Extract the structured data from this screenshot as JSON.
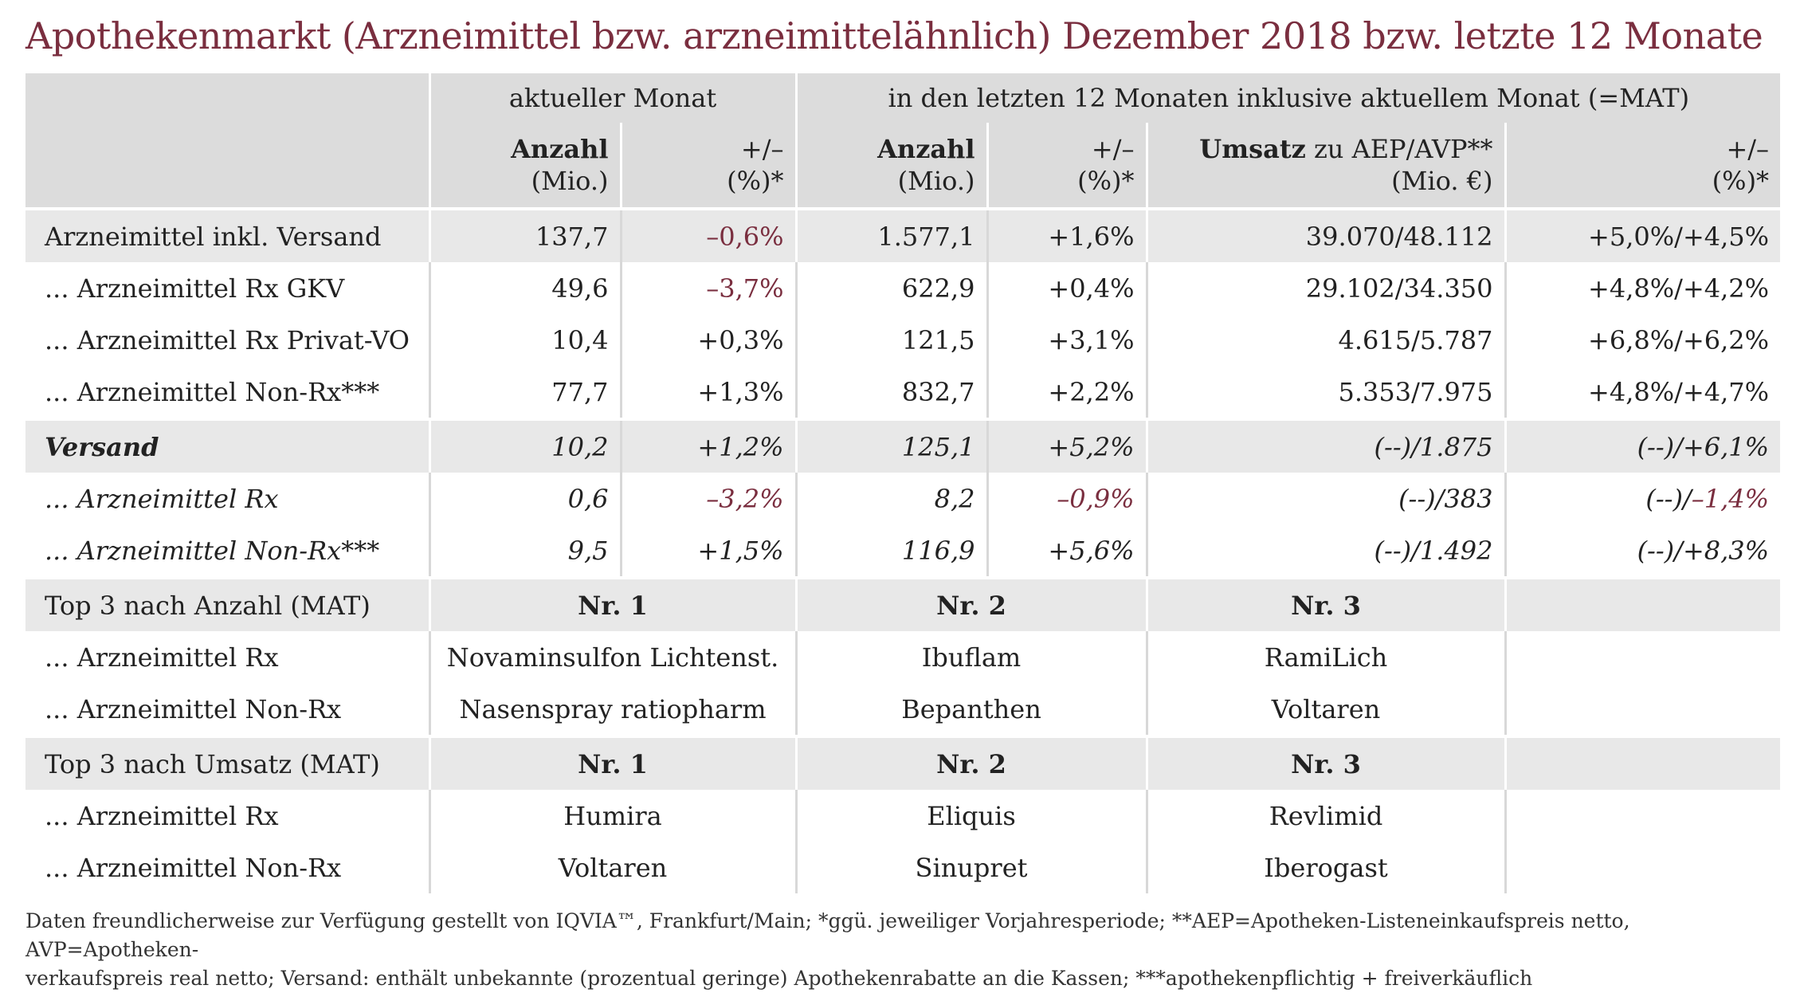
{
  "title": "Apothekenmarkt (Arzneimittel bzw. arzneimittelähnlich) Dezember 2018 bzw. letzte 12 Monate",
  "header": {
    "group_current": "aktueller Monat",
    "group_mat": "in den letzten 12 Monaten inklusive aktuellem Monat (=MAT)",
    "col_anzahl": "Anzahl",
    "col_anzahl_unit": "(Mio.)",
    "col_change": "+/–",
    "col_change_unit": "(%)*",
    "col_umsatz_bold": "Umsatz",
    "col_umsatz_rest": " zu AEP/AVP**",
    "col_umsatz_unit": "(Mio. €)"
  },
  "rows": [
    {
      "label": "Arzneimittel inkl. Versand",
      "cur_count": "137,7",
      "cur_change": "–0,6%",
      "mat_count": "1.577,1",
      "mat_change": "+1,6%",
      "revenue": "39.070/48.112",
      "rev_change_a": "+5,0%",
      "rev_sep": "/",
      "rev_change_b": "+4,5%"
    },
    {
      "label": "... Arzneimittel Rx GKV",
      "cur_count": "49,6",
      "cur_change": "–3,7%",
      "mat_count": "622,9",
      "mat_change": "+0,4%",
      "revenue": "29.102/34.350",
      "rev_change_a": "+4,8%",
      "rev_sep": "/",
      "rev_change_b": "+4,2%"
    },
    {
      "label": "... Arzneimittel Rx Privat-VO",
      "cur_count": "10,4",
      "cur_change": "+0,3%",
      "mat_count": "121,5",
      "mat_change": "+3,1%",
      "revenue": "4.615/5.787",
      "rev_change_a": "+6,8%",
      "rev_sep": "/",
      "rev_change_b": "+6,2%"
    },
    {
      "label": "... Arzneimittel Non-Rx***",
      "cur_count": "77,7",
      "cur_change": "+1,3%",
      "mat_count": "832,7",
      "mat_change": "+2,2%",
      "revenue": "5.353/7.975",
      "rev_change_a": "+4,8%",
      "rev_sep": "/",
      "rev_change_b": "+4,7%"
    },
    {
      "label": "Versand",
      "cur_count": "10,2",
      "cur_change": "+1,2%",
      "mat_count": "125,1",
      "mat_change": "+5,2%",
      "revenue": "(--)/1.875",
      "rev_change_a": "(--)",
      "rev_sep": "/",
      "rev_change_b": "+6,1%"
    },
    {
      "label": "... Arzneimittel Rx",
      "cur_count": "0,6",
      "cur_change": "–3,2%",
      "mat_count": "8,2",
      "mat_change": "–0,9%",
      "revenue": "(--)/383",
      "rev_change_a": "(--)",
      "rev_sep": "/",
      "rev_change_b": "–1,4%"
    },
    {
      "label": "... Arzneimittel Non-Rx***",
      "cur_count": "9,5",
      "cur_change": "+1,5%",
      "mat_count": "116,9",
      "mat_change": "+5,6%",
      "revenue": "(--)/1.492",
      "rev_change_a": "(--)",
      "rev_sep": "/",
      "rev_change_b": "+8,3%"
    }
  ],
  "top_count": {
    "heading": "Top 3 nach Anzahl (MAT)",
    "nr1": "Nr. 1",
    "nr2": "Nr. 2",
    "nr3": "Nr. 3",
    "rx_label": "... Arzneimittel Rx",
    "rx": [
      "Novaminsulfon Lichtenst.",
      "Ibuflam",
      "RamiLich"
    ],
    "nonrx_label": "... Arzneimittel Non-Rx",
    "nonrx": [
      "Nasenspray ratiopharm",
      "Bepanthen",
      "Voltaren"
    ]
  },
  "top_revenue": {
    "heading": "Top 3 nach Umsatz (MAT)",
    "nr1": "Nr. 1",
    "nr2": "Nr. 2",
    "nr3": "Nr. 3",
    "rx_label": "... Arzneimittel Rx",
    "rx": [
      "Humira",
      "Eliquis",
      "Revlimid"
    ],
    "nonrx_label": "... Arzneimittel Non-Rx",
    "nonrx": [
      "Voltaren",
      "Sinupret",
      "Iberogast"
    ]
  },
  "footer": {
    "line1": "Daten freundlicherweise zur Verfügung gestellt von IQVIA™, Frankfurt/Main; *ggü. jeweiliger Vorjahresperiode; **AEP=Apotheken-Listeneinkaufspreis netto, AVP=Apotheken-",
    "line2": "verkaufspreis real netto; Versand: enthält unbekannte (prozentual geringe) Apothekenrabatte an die Kassen; ***apothekenpflichtig + freiverkäuflich"
  },
  "colors": {
    "title": "#7a2e3f",
    "negative": "#7a2e3f",
    "header_bg": "#dcdcdc",
    "row_bg": "#e8e8e8"
  }
}
